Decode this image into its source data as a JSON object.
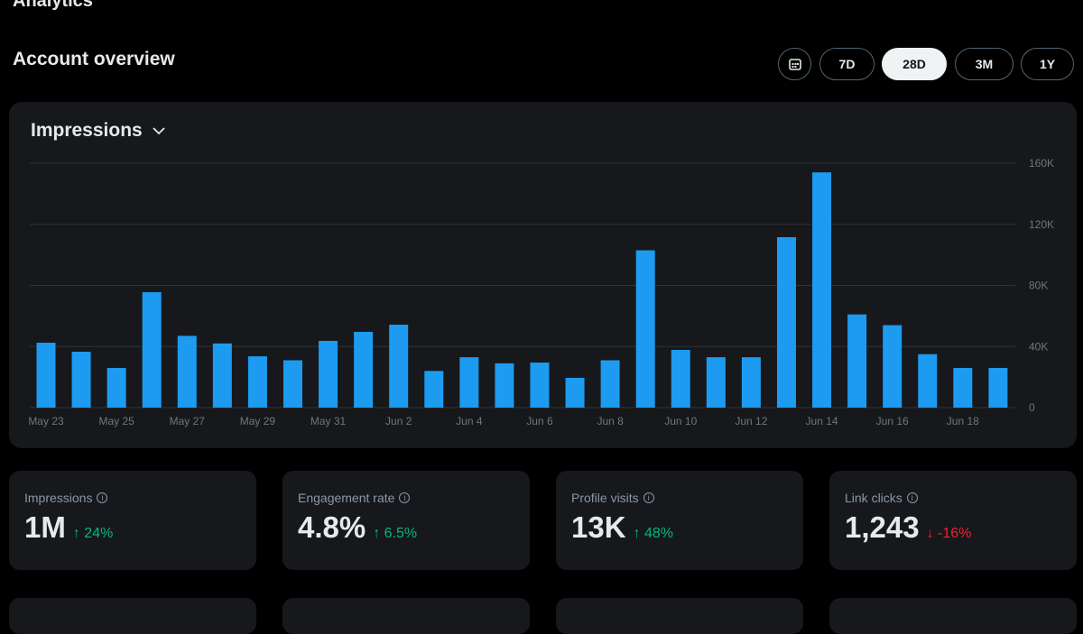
{
  "app_title": "Analytics",
  "section_title": "Account overview",
  "ranges": [
    {
      "label": "7D",
      "active": false
    },
    {
      "label": "28D",
      "active": true
    },
    {
      "label": "3M",
      "active": false
    },
    {
      "label": "1Y",
      "active": false
    }
  ],
  "metric_select": "Impressions",
  "colors": {
    "bar": "#1d9bf0",
    "up": "#00ba7c",
    "down": "#f4212e"
  },
  "chart_data": {
    "type": "bar",
    "categories": [
      "May 23",
      "May 24",
      "May 25",
      "May 26",
      "May 27",
      "May 28",
      "May 29",
      "May 30",
      "May 31",
      "Jun 1",
      "Jun 2",
      "Jun 3",
      "Jun 4",
      "Jun 5",
      "Jun 6",
      "Jun 7",
      "Jun 8",
      "Jun 9",
      "Jun 10",
      "Jun 11",
      "Jun 12",
      "Jun 13",
      "Jun 14",
      "Jun 15",
      "Jun 16",
      "Jun 17",
      "Jun 18",
      "Jun 19"
    ],
    "values": [
      42500,
      36600,
      26000,
      75600,
      47000,
      42000,
      33600,
      31000,
      43700,
      49600,
      54300,
      24000,
      33000,
      29000,
      29500,
      19500,
      31000,
      103000,
      37800,
      33000,
      33000,
      111600,
      154000,
      61000,
      54000,
      35000,
      26000,
      26000
    ],
    "x_tick_labels": [
      "May 23",
      "May 25",
      "May 27",
      "May 29",
      "May 31",
      "Jun 2",
      "Jun 4",
      "Jun 6",
      "Jun 8",
      "Jun 10",
      "Jun 12",
      "Jun 14",
      "Jun 16",
      "Jun 18"
    ],
    "y_tick_labels": [
      "0",
      "40K",
      "80K",
      "120K",
      "160K"
    ],
    "ylim": [
      0,
      160000
    ],
    "grid": true
  },
  "stats": [
    {
      "label": "Impressions",
      "value": "1M",
      "delta": "24%",
      "dir": "up"
    },
    {
      "label": "Engagement rate",
      "value": "4.8%",
      "delta": "6.5%",
      "dir": "up"
    },
    {
      "label": "Profile visits",
      "value": "13K",
      "delta": "48%",
      "dir": "up"
    },
    {
      "label": "Link clicks",
      "value": "1,243",
      "delta": "-16%",
      "dir": "down"
    }
  ]
}
